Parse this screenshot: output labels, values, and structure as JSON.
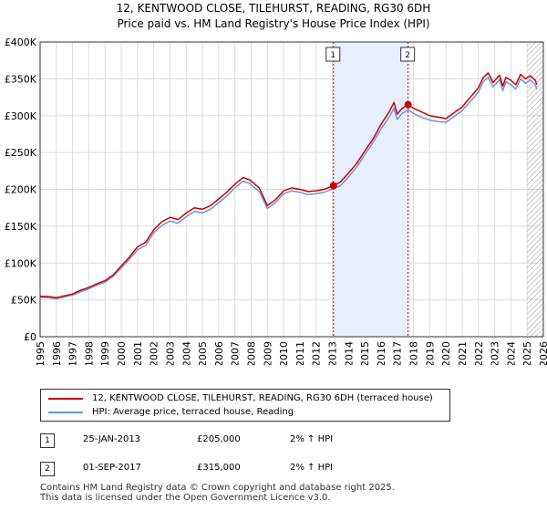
{
  "title_line1": "12, KENTWOOD CLOSE, TILEHURST, READING, RG30 6DH",
  "title_line2": "Price paid vs. HM Land Registry's House Price Index (HPI)",
  "chart_data": {
    "type": "line",
    "title": "12, KENTWOOD CLOSE, TILEHURST, READING, RG30 6DH - Price paid vs. HM Land Registry's House Price Index (HPI)",
    "xlim": [
      1995,
      2026
    ],
    "ylim": [
      0,
      400000
    ],
    "x_ticks": [
      1995,
      1996,
      1997,
      1998,
      1999,
      2000,
      2001,
      2002,
      2003,
      2004,
      2005,
      2006,
      2007,
      2008,
      2009,
      2010,
      2011,
      2012,
      2013,
      2014,
      2015,
      2016,
      2017,
      2018,
      2019,
      2020,
      2021,
      2022,
      2023,
      2024,
      2025,
      2026
    ],
    "y_ticks": [
      0,
      50000,
      100000,
      150000,
      200000,
      250000,
      300000,
      350000,
      400000
    ],
    "y_tick_labels": [
      "£0",
      "£50K",
      "£100K",
      "£150K",
      "£200K",
      "£250K",
      "£300K",
      "£350K",
      "£400K"
    ],
    "grid": true,
    "series": [
      {
        "name": "12, KENTWOOD CLOSE, TILEHURST, READING, RG30 6DH (terraced house)",
        "color": "#cc0000",
        "x": [
          1995.0,
          1995.5,
          1996.0,
          1996.5,
          1997.0,
          1997.5,
          1998.0,
          1998.5,
          1999.0,
          1999.5,
          2000.0,
          2000.5,
          2001.0,
          2001.5,
          2002.0,
          2002.5,
          2003.0,
          2003.5,
          2004.0,
          2004.5,
          2005.0,
          2005.5,
          2006.0,
          2006.5,
          2007.0,
          2007.5,
          2007.9,
          2008.5,
          2009.0,
          2009.5,
          2010.0,
          2010.5,
          2011.0,
          2011.5,
          2012.0,
          2012.5,
          2013.07,
          2013.5,
          2014.0,
          2014.5,
          2015.0,
          2015.5,
          2016.0,
          2016.5,
          2016.8,
          2017.0,
          2017.3,
          2017.67,
          2018.0,
          2018.5,
          2019.0,
          2019.5,
          2020.0,
          2020.5,
          2021.0,
          2021.5,
          2022.0,
          2022.3,
          2022.6,
          2022.9,
          2023.1,
          2023.3,
          2023.5,
          2023.7,
          2024.0,
          2024.3,
          2024.6,
          2024.9,
          2025.2,
          2025.5,
          2025.6
        ],
        "y": [
          55000,
          54500,
          53000,
          55500,
          58000,
          63000,
          67000,
          72000,
          76000,
          84000,
          96000,
          108000,
          122000,
          128000,
          145000,
          156000,
          162000,
          159000,
          168000,
          175000,
          173000,
          178000,
          187000,
          196000,
          207000,
          216000,
          213000,
          202000,
          178000,
          186000,
          198000,
          202000,
          200000,
          197000,
          198000,
          200000,
          205000,
          210000,
          222000,
          235000,
          252000,
          268000,
          288000,
          305000,
          318000,
          302000,
          310000,
          315000,
          310000,
          305000,
          300000,
          298000,
          296000,
          304000,
          312000,
          325000,
          338000,
          352000,
          358000,
          345000,
          350000,
          355000,
          340000,
          352000,
          348000,
          342000,
          356000,
          350000,
          354000,
          348000,
          342000
        ]
      },
      {
        "name": "HPI: Average price, terraced house, Reading",
        "color": "#6a96d8",
        "x": [
          1995.0,
          1995.5,
          1996.0,
          1996.5,
          1997.0,
          1997.5,
          1998.0,
          1998.5,
          1999.0,
          1999.5,
          2000.0,
          2000.5,
          2001.0,
          2001.5,
          2002.0,
          2002.5,
          2003.0,
          2003.5,
          2004.0,
          2004.5,
          2005.0,
          2005.5,
          2006.0,
          2006.5,
          2007.0,
          2007.5,
          2007.9,
          2008.5,
          2009.0,
          2009.5,
          2010.0,
          2010.5,
          2011.0,
          2011.5,
          2012.0,
          2012.5,
          2013.07,
          2013.5,
          2014.0,
          2014.5,
          2015.0,
          2015.5,
          2016.0,
          2016.5,
          2016.8,
          2017.0,
          2017.3,
          2017.67,
          2018.0,
          2018.5,
          2019.0,
          2019.5,
          2020.0,
          2020.5,
          2021.0,
          2021.5,
          2022.0,
          2022.3,
          2022.6,
          2022.9,
          2023.1,
          2023.3,
          2023.5,
          2023.7,
          2024.0,
          2024.3,
          2024.6,
          2024.9,
          2025.2,
          2025.5,
          2025.6
        ],
        "y": [
          53500,
          53000,
          51500,
          54000,
          56500,
          61000,
          65000,
          70000,
          74000,
          82000,
          93000,
          105000,
          118000,
          124000,
          141000,
          151000,
          157000,
          154000,
          163000,
          170000,
          168000,
          173000,
          182000,
          191000,
          202000,
          211000,
          208000,
          197000,
          174000,
          182000,
          194000,
          198000,
          196000,
          193000,
          194000,
          196000,
          201000,
          205000,
          217000,
          230000,
          247000,
          263000,
          282000,
          298000,
          310000,
          295000,
          303000,
          308000,
          303000,
          298000,
          294000,
          292000,
          291000,
          299000,
          307000,
          319000,
          332000,
          346000,
          352000,
          339000,
          344000,
          349000,
          334000,
          346000,
          342000,
          336000,
          350000,
          344000,
          348000,
          342000,
          336000
        ]
      }
    ],
    "vertical_markers": [
      {
        "x": 2013.07,
        "label": "1"
      },
      {
        "x": 2017.67,
        "label": "2"
      }
    ],
    "shaded_region": [
      2013.07,
      2017.67
    ],
    "hatched_region_from": 2025.0,
    "sale_points": [
      {
        "x": 2013.07,
        "y": 205000
      },
      {
        "x": 2017.67,
        "y": 315000
      }
    ]
  },
  "legend": {
    "series1_label": "12, KENTWOOD CLOSE, TILEHURST, READING, RG30 6DH (terraced house)",
    "series2_label": "HPI: Average price, terraced house, Reading"
  },
  "transactions": [
    {
      "num": "1",
      "date": "25-JAN-2013",
      "price": "£205,000",
      "hpi": "2% ↑ HPI"
    },
    {
      "num": "2",
      "date": "01-SEP-2017",
      "price": "£315,000",
      "hpi": "2% ↑ HPI"
    }
  ],
  "footer": {
    "line1": "Contains HM Land Registry data © Crown copyright and database right 2025.",
    "line2": "This data is licensed under the Open Government Licence v3.0."
  }
}
